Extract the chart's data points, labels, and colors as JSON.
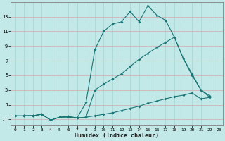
{
  "xlabel": "Humidex (Indice chaleur)",
  "bg_color": "#c2e8e8",
  "grid_color": "#a8d4d4",
  "line_color": "#1a7575",
  "line1_x": [
    1,
    2,
    3,
    4,
    5,
    6,
    7,
    8,
    9,
    10,
    11,
    12,
    13,
    14,
    15,
    16,
    17,
    18,
    19,
    20,
    21,
    22
  ],
  "line1_y": [
    -0.5,
    -0.5,
    -0.3,
    -1.1,
    -0.7,
    -0.6,
    -0.8,
    1.3,
    8.5,
    11.0,
    12.0,
    12.3,
    13.7,
    12.3,
    14.5,
    13.2,
    12.5,
    10.2,
    7.3,
    5.0,
    3.0,
    2.0
  ],
  "line2_x": [
    1,
    2,
    3,
    4,
    5,
    6,
    7,
    8,
    9,
    10,
    11,
    12,
    13,
    14,
    15,
    16,
    17,
    18,
    19,
    20,
    21,
    22
  ],
  "line2_y": [
    -0.5,
    -0.5,
    -0.3,
    -1.1,
    -0.7,
    -0.7,
    -0.8,
    -0.7,
    3.0,
    3.8,
    4.5,
    5.2,
    6.2,
    7.2,
    8.0,
    8.8,
    9.5,
    10.2,
    7.3,
    5.2,
    3.0,
    2.2
  ],
  "line3_x": [
    0,
    1,
    2,
    3,
    4,
    5,
    6,
    7,
    8,
    9,
    10,
    11,
    12,
    13,
    14,
    15,
    16,
    17,
    18,
    19,
    20,
    21,
    22
  ],
  "line3_y": [
    -0.5,
    -0.5,
    -0.5,
    -0.3,
    -1.1,
    -0.7,
    -0.6,
    -0.8,
    -0.7,
    -0.5,
    -0.3,
    -0.1,
    0.2,
    0.5,
    0.8,
    1.2,
    1.5,
    1.8,
    2.1,
    2.3,
    2.6,
    1.8,
    2.0
  ],
  "xlim": [
    -0.5,
    23.5
  ],
  "ylim": [
    -1.8,
    15.0
  ],
  "yticks": [
    -1,
    1,
    3,
    5,
    7,
    9,
    11,
    13
  ],
  "xticks": [
    0,
    1,
    2,
    3,
    4,
    5,
    6,
    7,
    8,
    9,
    10,
    11,
    12,
    13,
    14,
    15,
    16,
    17,
    18,
    19,
    20,
    21,
    22,
    23
  ]
}
